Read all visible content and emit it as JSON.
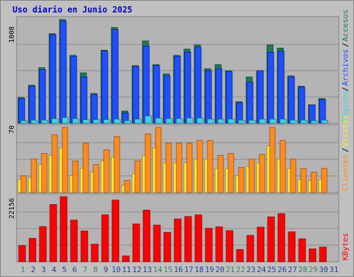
{
  "title": "Uso diario en Junio 2025",
  "colors": {
    "frame_bg": "#c0c0c0",
    "panel_bg": "#b4b4b4",
    "accesos": "#1d7a56",
    "archivos": "#1e50ff",
    "paginas": "#3ed2e6",
    "visitas": "#ffea32",
    "clientes": "#ff8c1e",
    "kbytes": "#ff0000",
    "weekday_text": "#1e3c9b",
    "weekend_text": "#2b8a55"
  },
  "panel_labels": {
    "top": {
      "max": "1008",
      "legend": [
        "Accesos",
        "Archivos",
        "Páginas"
      ]
    },
    "middle": {
      "max": "70",
      "legend": [
        "Clientes",
        "Visitas"
      ]
    },
    "bottom": {
      "max": "22156",
      "legend": [
        "KBytes"
      ]
    }
  },
  "chart_data": [
    {
      "type": "bar",
      "title": "Uso diario en Junio 2025",
      "categories": [
        "1",
        "2",
        "3",
        "4",
        "5",
        "6",
        "7",
        "8",
        "9",
        "10",
        "11",
        "12",
        "13",
        "14",
        "15",
        "16",
        "17",
        "18",
        "19",
        "20",
        "21",
        "22",
        "23",
        "24",
        "25",
        "26",
        "27",
        "28",
        "29",
        "30",
        "31"
      ],
      "weekend_days": [
        "1",
        "7",
        "8",
        "14",
        "15",
        "21",
        "22",
        "28",
        "29"
      ],
      "ylim": [
        0,
        1008
      ],
      "series": [
        {
          "name": "Accesos",
          "values": [
            250,
            370,
            540,
            870,
            1008,
            660,
            490,
            290,
            710,
            930,
            120,
            560,
            800,
            570,
            480,
            660,
            720,
            760,
            530,
            570,
            510,
            210,
            450,
            510,
            760,
            730,
            460,
            360,
            180,
            240,
            0
          ]
        },
        {
          "name": "Archivos",
          "values": [
            240,
            360,
            520,
            860,
            990,
            650,
            450,
            280,
            700,
            910,
            100,
            550,
            750,
            560,
            460,
            650,
            690,
            740,
            510,
            530,
            500,
            200,
            400,
            510,
            690,
            700,
            450,
            350,
            180,
            230,
            0
          ]
        },
        {
          "name": "Páginas",
          "values": [
            25,
            30,
            30,
            45,
            55,
            45,
            35,
            35,
            35,
            40,
            25,
            40,
            70,
            50,
            45,
            45,
            50,
            50,
            40,
            40,
            40,
            30,
            30,
            40,
            40,
            40,
            30,
            30,
            25,
            30,
            0
          ]
        }
      ]
    },
    {
      "type": "bar",
      "categories": [
        "1",
        "2",
        "3",
        "4",
        "5",
        "6",
        "7",
        "8",
        "9",
        "10",
        "11",
        "12",
        "13",
        "14",
        "15",
        "16",
        "17",
        "18",
        "19",
        "20",
        "21",
        "22",
        "23",
        "24",
        "25",
        "26",
        "27",
        "28",
        "29",
        "30",
        "31"
      ],
      "ylim": [
        0,
        70
      ],
      "series": [
        {
          "name": "Clientes",
          "values": [
            18,
            36,
            42,
            62,
            70,
            34,
            53,
            30,
            46,
            60,
            13,
            34,
            63,
            70,
            53,
            53,
            53,
            56,
            56,
            40,
            42,
            27,
            36,
            41,
            70,
            56,
            36,
            26,
            22,
            26,
            0
          ]
        },
        {
          "name": "Visitas",
          "values": [
            14,
            16,
            30,
            40,
            48,
            18,
            26,
            22,
            34,
            38,
            8,
            20,
            40,
            48,
            32,
            32,
            32,
            36,
            36,
            26,
            26,
            18,
            28,
            32,
            50,
            36,
            26,
            14,
            13,
            14,
            0
          ]
        }
      ]
    },
    {
      "type": "bar",
      "categories": [
        "1",
        "2",
        "3",
        "4",
        "5",
        "6",
        "7",
        "8",
        "9",
        "10",
        "11",
        "12",
        "13",
        "14",
        "15",
        "16",
        "17",
        "18",
        "19",
        "20",
        "21",
        "22",
        "23",
        "24",
        "25",
        "26",
        "27",
        "28",
        "29",
        "30",
        "31"
      ],
      "ylim": [
        0,
        22156
      ],
      "series": [
        {
          "name": "KBytes",
          "values": [
            5500,
            8000,
            12000,
            19500,
            22156,
            14200,
            10500,
            6000,
            16000,
            21000,
            2000,
            12900,
            17600,
            12500,
            10000,
            14600,
            15400,
            16000,
            11400,
            11900,
            10600,
            4200,
            9000,
            11800,
            15300,
            16400,
            10200,
            7800,
            4400,
            5000,
            0
          ]
        }
      ]
    }
  ]
}
